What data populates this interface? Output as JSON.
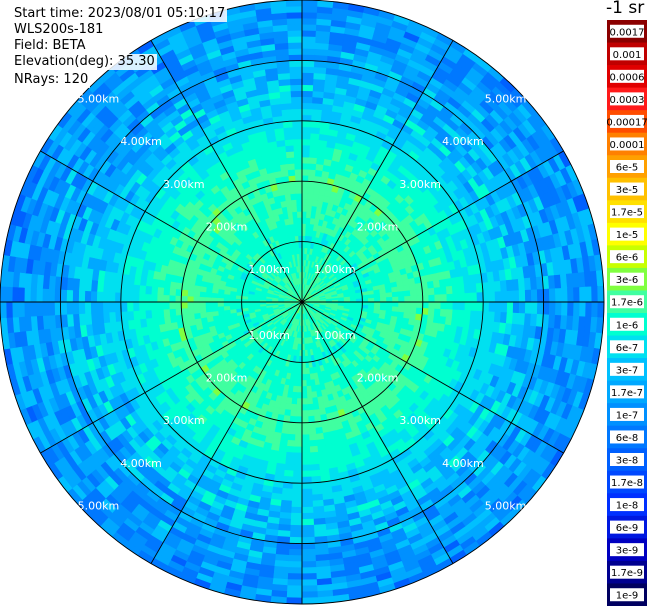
{
  "header": {
    "start_time": "Start time: 2023/08/01 05:10:17",
    "instrument": "WLS200s-181",
    "field": "Field: BETA",
    "elevation": "Elevation(deg): 35.30",
    "nrays": "NRays: 120"
  },
  "chart_data": {
    "type": "heatmap",
    "projection": "polar-ppi",
    "range_km": [
      0,
      5.0
    ],
    "range_rings_km": [
      1,
      2,
      3,
      4,
      5
    ],
    "ring_labels": [
      "1.00km",
      "2.00km",
      "3.00km",
      "4.00km",
      "5.00km"
    ],
    "azimuth_lines_deg": [
      0,
      30,
      60,
      90,
      120,
      150
    ],
    "grid": true,
    "colorbar": {
      "unit": "-1 sr",
      "labels": [
        "0.0017",
        "0.001",
        "0.0006",
        "0.0003",
        "0.00017",
        "0.0001",
        "6e-5",
        "3e-5",
        "1.7e-5",
        "1e-5",
        "6e-6",
        "3e-6",
        "1.7e-6",
        "1e-6",
        "6e-7",
        "3e-7",
        "1.7e-7",
        "1e-7",
        "6e-8",
        "3e-8",
        "1.7e-8",
        "1e-8",
        "6e-9",
        "3e-9",
        "1.7e-9",
        "1e-9"
      ],
      "colors": [
        "#8b0000",
        "#c00000",
        "#e00000",
        "#ff1a1a",
        "#ff4d00",
        "#ff8000",
        "#ffa000",
        "#ffc000",
        "#ffe000",
        "#ffff00",
        "#c8ff00",
        "#80ff40",
        "#40ffa0",
        "#00ffd0",
        "#00e0f0",
        "#00c0ff",
        "#00a8ff",
        "#0090ff",
        "#0078ff",
        "#0060ff",
        "#0048ff",
        "#0030ff",
        "#0018e0",
        "#0000c0",
        "#000090",
        "#000060"
      ]
    },
    "beta_profile": [
      {
        "range_km": 0.0,
        "value": "1.7e-6"
      },
      {
        "range_km": 1.0,
        "value": "1e-6"
      },
      {
        "range_km": 2.0,
        "value": "1.7e-6"
      },
      {
        "range_km": 3.0,
        "value": "6e-7"
      },
      {
        "range_km": 4.0,
        "value": "1.7e-7"
      },
      {
        "range_km": 5.0,
        "value": "1e-7"
      }
    ]
  }
}
